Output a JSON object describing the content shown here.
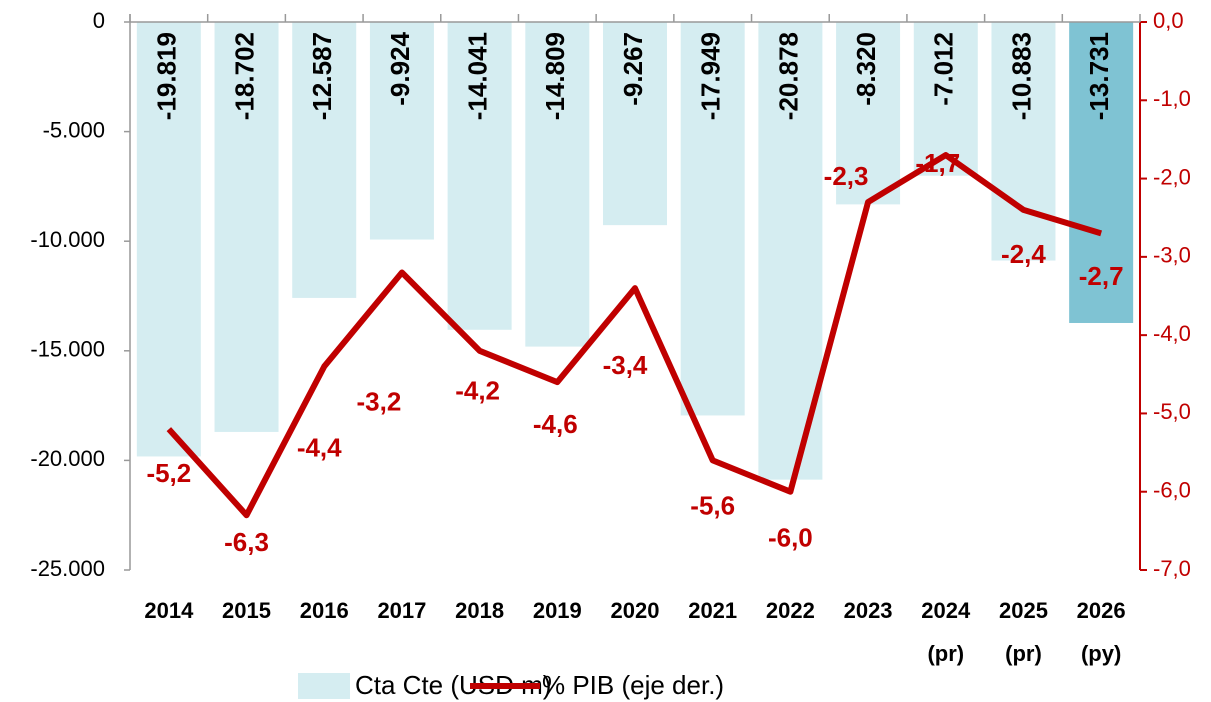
{
  "chart_data": {
    "type": "bar_line",
    "categories": [
      "2014",
      "2015",
      "2016",
      "2017",
      "2018",
      "2019",
      "2020",
      "2021",
      "2022",
      "2023",
      "2024 (pr)",
      "2025 (pr)",
      "2026 (py)"
    ],
    "series": [
      {
        "name": "Cta Cte (USD m)",
        "type": "bar",
        "color": "#d5edf1",
        "colors": [
          "#d5edf1",
          "#d5edf1",
          "#d5edf1",
          "#d5edf1",
          "#d5edf1",
          "#d5edf1",
          "#d5edf1",
          "#d5edf1",
          "#d5edf1",
          "#d5edf1",
          "#d5edf1",
          "#d5edf1",
          "#7fc3d3"
        ],
        "values": [
          -19819,
          -18702,
          -12587,
          -9924,
          -14041,
          -14809,
          -9267,
          -17949,
          -20878,
          -8320,
          -7012,
          -10883,
          -13731
        ],
        "value_labels": [
          "-19.819",
          "-18.702",
          "-12.587",
          "-9.924",
          "-14.041",
          "-14.809",
          "-9.267",
          "-17.949",
          "-20.878",
          "-8.320",
          "-7.012",
          "-10.883",
          "-13.731"
        ]
      },
      {
        "name": "% PIB (eje der.)",
        "type": "line",
        "axis": "y2",
        "color": "#c00000",
        "values": [
          -5.2,
          -6.3,
          -4.4,
          -3.2,
          -4.2,
          -4.6,
          -3.4,
          -5.6,
          -6.0,
          -2.3,
          -1.7,
          -2.4,
          -2.7
        ],
        "value_labels": [
          "-5,2",
          "-6,3",
          "-4,4",
          "-3,2",
          "-4,2",
          "-4,6",
          "-3,4",
          "-5,6",
          "-6,0",
          "-2,3",
          "-1,7",
          "-2,4",
          "-2,7"
        ]
      }
    ],
    "ylim": [
      -25000,
      0
    ],
    "yticks": [
      0,
      {
        "value": -5000,
        "label": "-5.000"
      },
      {
        "value": -10000,
        "label": "-10.000"
      },
      {
        "value": -15000,
        "label": "-15.000"
      },
      {
        "value": -20000,
        "label": "-20.000"
      },
      {
        "value": -25000,
        "label": "-25.000"
      }
    ],
    "y2lim": [
      -7,
      0
    ],
    "y2ticks": [
      {
        "value": 0,
        "label": "0,0"
      },
      {
        "value": -1,
        "label": "-1,0"
      },
      {
        "value": -2,
        "label": "-2,0"
      },
      {
        "value": -3,
        "label": "-3,0"
      },
      {
        "value": -4,
        "label": "-4,0"
      },
      {
        "value": -5,
        "label": "-5,0"
      },
      {
        "value": -6,
        "label": "-6,0"
      },
      {
        "value": -7,
        "label": "-7,0"
      }
    ],
    "legend": "bottom"
  }
}
